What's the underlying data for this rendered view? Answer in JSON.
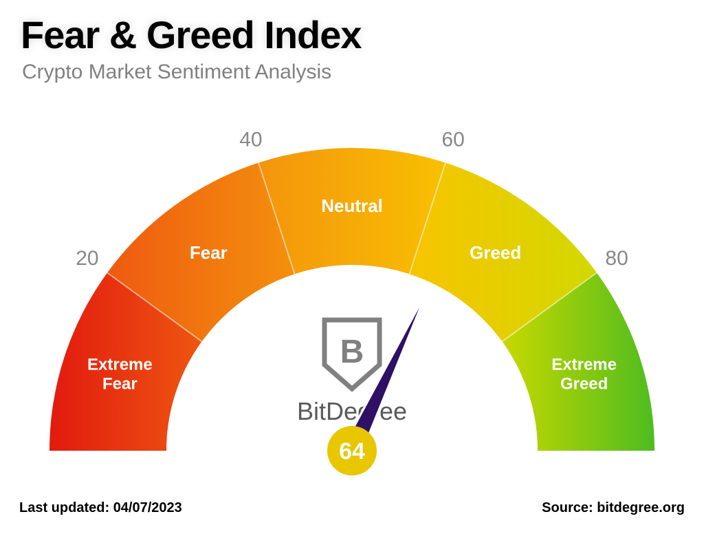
{
  "title": "Fear & Greed Index",
  "subtitle": "Crypto Market Sentiment Analysis",
  "gauge": {
    "type": "gauge",
    "value": 64,
    "min": 0,
    "max": 100,
    "start_angle_deg": 180,
    "end_angle_deg": 0,
    "needle_color": "#2e1065",
    "needle_outline": "#ffffff",
    "value_circle_color": "#e8c600",
    "value_text_color": "#ffffff",
    "value_fontsize": 34,
    "background_color": "#ffffff",
    "tick_label_color": "#888888",
    "tick_label_fontsize": 30,
    "segment_label_color": "#ffffff",
    "segment_label_fontsize": 26,
    "outer_radius": 440,
    "inner_radius": 270,
    "segments": [
      {
        "from": 0,
        "to": 20,
        "label": "Extreme Fear",
        "color": "#e83e12"
      },
      {
        "from": 20,
        "to": 40,
        "label": "Fear",
        "color": "#f27a0e"
      },
      {
        "from": 40,
        "to": 60,
        "label": "Neutral",
        "color": "#f7a80d"
      },
      {
        "from": 60,
        "to": 80,
        "label": "Greed",
        "color": "#e9d000"
      },
      {
        "from": 80,
        "to": 100,
        "label": "Extreme Greed",
        "color": "#6bc21f"
      }
    ],
    "ticks": [
      20,
      40,
      60,
      80
    ]
  },
  "brand": {
    "name": "BitDegree",
    "logo_letter": "B",
    "logo_color": "#808080"
  },
  "footer": {
    "last_updated_label": "Last updated:",
    "last_updated_value": "04/07/2023",
    "source_label": "Source:",
    "source_value": "bitdegree.org"
  }
}
